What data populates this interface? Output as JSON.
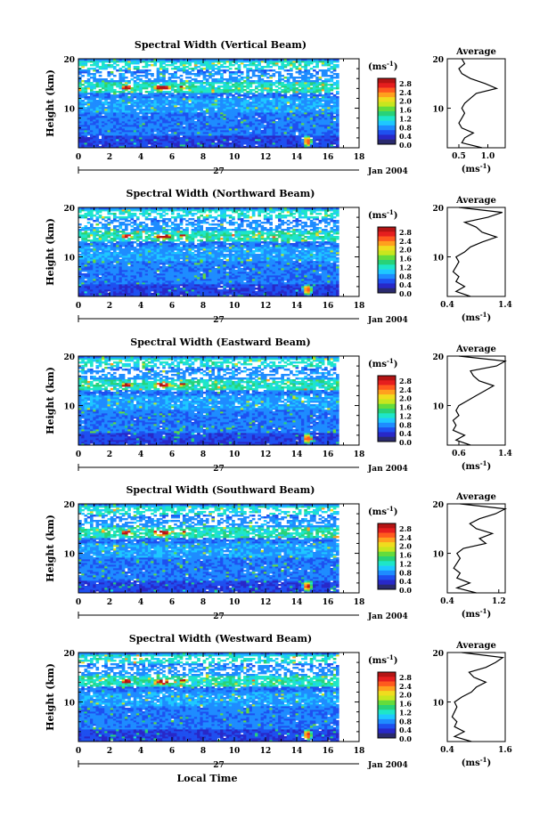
{
  "chart_data": {
    "type": "heatmap",
    "colorbar": {
      "unit": "(ms",
      "unit_exp": "-1",
      "unit_close": ")",
      "ticks": [
        "2.8",
        "2.4",
        "2.0",
        "1.6",
        "1.2",
        "0.8",
        "0.4",
        "0.0"
      ],
      "range": [
        0,
        3.0
      ],
      "colors": [
        "#2a2a6e",
        "#2828c8",
        "#1e50f0",
        "#1e8cff",
        "#1ec8ff",
        "#1ee6c8",
        "#28d278",
        "#64dc3c",
        "#c8e61e",
        "#f0dc1e",
        "#ffa01e",
        "#ff5a1e",
        "#e61e1e",
        "#b41414"
      ]
    },
    "xaxis": {
      "ticks": [
        "0",
        "2",
        "4",
        "6",
        "8",
        "10",
        "12",
        "14",
        "16",
        "18"
      ],
      "range": [
        0,
        18
      ],
      "date_day": "27",
      "date_label": "Jan 2004",
      "title": "Local Time"
    },
    "yaxis": {
      "label": "Height (km)",
      "ticks": [
        "10",
        "20"
      ],
      "range": [
        2,
        20
      ]
    },
    "average_title": "Average",
    "average_unit": "(ms",
    "average_unit_exp": "-1",
    "average_unit_close": ")",
    "panels": [
      {
        "title": "Spectral Width (Vertical Beam)",
        "avg_ticks": [
          "0.5",
          "1.0"
        ],
        "avg_range": [
          0.3,
          1.3
        ],
        "avg_profile": [
          [
            0.9,
            2
          ],
          [
            0.55,
            3
          ],
          [
            0.6,
            4
          ],
          [
            0.75,
            5
          ],
          [
            0.55,
            6
          ],
          [
            0.5,
            7
          ],
          [
            0.55,
            8
          ],
          [
            0.6,
            9
          ],
          [
            0.55,
            10
          ],
          [
            0.6,
            11
          ],
          [
            0.7,
            12
          ],
          [
            0.8,
            13
          ],
          [
            1.15,
            14
          ],
          [
            0.95,
            15
          ],
          [
            0.7,
            16
          ],
          [
            0.55,
            17
          ],
          [
            0.5,
            18
          ],
          [
            0.6,
            19
          ],
          [
            0.55,
            20
          ]
        ]
      },
      {
        "title": "Spectral Width (Northward Beam)",
        "avg_ticks": [
          "0.4",
          "1.4"
        ],
        "avg_range": [
          0.4,
          1.4
        ],
        "avg_profile": [
          [
            0.8,
            2
          ],
          [
            0.55,
            3
          ],
          [
            0.7,
            4
          ],
          [
            0.55,
            5
          ],
          [
            0.6,
            6
          ],
          [
            0.5,
            7
          ],
          [
            0.55,
            8
          ],
          [
            0.6,
            9
          ],
          [
            0.55,
            10
          ],
          [
            0.7,
            11
          ],
          [
            0.8,
            12
          ],
          [
            1.0,
            13
          ],
          [
            1.25,
            14
          ],
          [
            1.0,
            15
          ],
          [
            0.9,
            16
          ],
          [
            0.7,
            17
          ],
          [
            1.1,
            18
          ],
          [
            1.35,
            19
          ],
          [
            0.6,
            20
          ]
        ]
      },
      {
        "title": "Spectral Width (Eastward Beam)",
        "avg_ticks": [
          "0.6",
          "1.4"
        ],
        "avg_range": [
          0.4,
          1.4
        ],
        "avg_profile": [
          [
            0.8,
            2
          ],
          [
            0.55,
            3
          ],
          [
            0.7,
            4
          ],
          [
            0.5,
            5
          ],
          [
            0.55,
            6
          ],
          [
            0.5,
            7
          ],
          [
            0.6,
            8
          ],
          [
            0.55,
            9
          ],
          [
            0.6,
            10
          ],
          [
            0.75,
            11
          ],
          [
            0.9,
            12
          ],
          [
            1.05,
            13
          ],
          [
            1.2,
            14
          ],
          [
            0.95,
            15
          ],
          [
            0.85,
            16
          ],
          [
            0.8,
            17
          ],
          [
            1.25,
            18
          ],
          [
            1.4,
            19
          ],
          [
            0.6,
            20
          ]
        ]
      },
      {
        "title": "Spectral Width (Southward Beam)",
        "avg_ticks": [
          "0.4",
          "1.2"
        ],
        "avg_range": [
          0.4,
          1.3
        ],
        "avg_profile": [
          [
            0.85,
            2
          ],
          [
            0.55,
            3
          ],
          [
            0.75,
            4
          ],
          [
            0.55,
            5
          ],
          [
            0.6,
            6
          ],
          [
            0.5,
            7
          ],
          [
            0.55,
            8
          ],
          [
            0.6,
            9
          ],
          [
            0.55,
            10
          ],
          [
            0.65,
            11
          ],
          [
            1.0,
            12
          ],
          [
            0.9,
            13
          ],
          [
            1.1,
            14
          ],
          [
            0.85,
            15
          ],
          [
            0.75,
            16
          ],
          [
            0.9,
            17
          ],
          [
            1.15,
            18
          ],
          [
            1.3,
            19
          ],
          [
            0.6,
            20
          ]
        ]
      },
      {
        "title": "Spectral Width (Westward Beam)",
        "avg_ticks": [
          "0.4",
          "1.6"
        ],
        "avg_range": [
          0.4,
          1.6
        ],
        "avg_profile": [
          [
            0.9,
            2
          ],
          [
            0.55,
            3
          ],
          [
            0.75,
            4
          ],
          [
            0.55,
            5
          ],
          [
            0.6,
            6
          ],
          [
            0.5,
            7
          ],
          [
            0.55,
            8
          ],
          [
            0.6,
            9
          ],
          [
            0.55,
            10
          ],
          [
            0.7,
            11
          ],
          [
            0.9,
            12
          ],
          [
            1.0,
            13
          ],
          [
            1.2,
            14
          ],
          [
            0.95,
            15
          ],
          [
            0.85,
            16
          ],
          [
            1.2,
            17
          ],
          [
            1.4,
            18
          ],
          [
            1.55,
            19
          ],
          [
            0.7,
            20
          ]
        ]
      }
    ]
  }
}
